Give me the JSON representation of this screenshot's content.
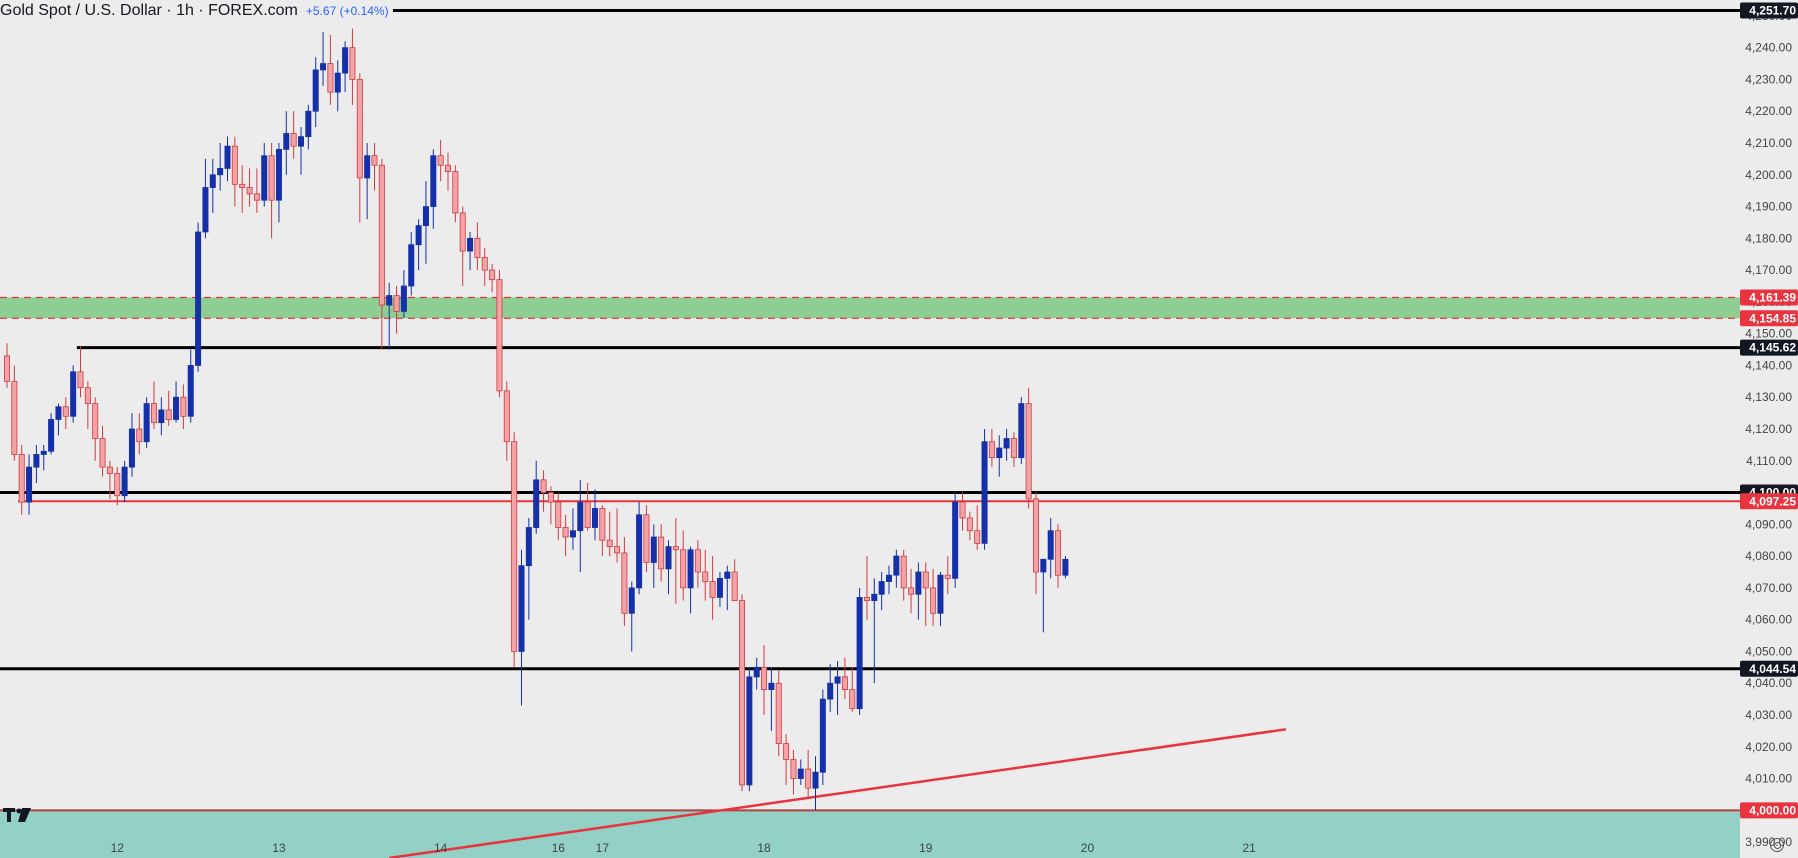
{
  "header": {
    "title": "Gold Spot / U.S. Dollar · 1h · FOREX.com",
    "change": "+5.67 (+0.14%)"
  },
  "colors": {
    "background": "#ececec",
    "bull": "#1530a8",
    "bear": "#f2a3a5",
    "bear_outline": "#d23a41",
    "resistance_line": "#000000",
    "red_line": "#e8343f",
    "green_zone": "#8fce92",
    "teal_zone": "#93d0c6"
  },
  "icons": {
    "logo": "tradingview-logo-icon",
    "settings": "settings-gear-icon"
  },
  "chart_data": {
    "type": "candlestick",
    "title": "Gold Spot / U.S. Dollar · 1h · FOREX.com",
    "xlabel": "",
    "ylabel": "",
    "ylim": [
      3985,
      4255
    ],
    "x_ticks": [
      {
        "label": "12",
        "bar": 15
      },
      {
        "label": "13",
        "bar": 37
      },
      {
        "label": "14",
        "bar": 59
      },
      {
        "label": "16",
        "bar": 75
      },
      {
        "label": "17",
        "bar": 81
      },
      {
        "label": "18",
        "bar": 103
      },
      {
        "label": "19",
        "bar": 125
      },
      {
        "label": "20",
        "bar": 147
      },
      {
        "label": "21",
        "bar": 169
      }
    ],
    "y_ticks": [
      3990,
      4000,
      4010,
      4020,
      4030,
      4040,
      4050,
      4060,
      4070,
      4080,
      4090,
      4100,
      4110,
      4120,
      4130,
      4140,
      4150,
      4160,
      4170,
      4180,
      4190,
      4200,
      4210,
      4220,
      4230,
      4240,
      4250
    ],
    "horizontal_lines": [
      {
        "value": 4251.7,
        "label": "4,251.70",
        "color": "#000000",
        "start_bar": -1
      },
      {
        "value": 4145.62,
        "label": "4,145.62",
        "color": "#000000",
        "start_bar": 9.5
      },
      {
        "value": 4100.0,
        "label": "4,100.00",
        "color": "#000000",
        "start_bar": -1
      },
      {
        "value": 4097.25,
        "label": "4,097.25",
        "color": "#e8343f",
        "start_bar": 1.5
      },
      {
        "value": 4044.54,
        "label": "4,044.54",
        "color": "#000000",
        "start_bar": -1
      }
    ],
    "zones": [
      {
        "from": 4154.85,
        "to": 4161.39,
        "color": "#8fce92",
        "label_top": "4,161.39",
        "label_bottom": "4,154.85",
        "label_color": "#e8343f"
      },
      {
        "from": 3985,
        "to": 4000.0,
        "color": "#93d0c6",
        "label_top": "4,000.00",
        "label_color": "#e8343f"
      }
    ],
    "trendline": {
      "start": {
        "bar": 52,
        "value": 3985
      },
      "end": {
        "bar": 174,
        "value": 4025.5
      },
      "color": "#e8343f"
    },
    "candles": [
      [
        4143,
        4147,
        4133,
        4135
      ],
      [
        4135,
        4140,
        4110,
        4112
      ],
      [
        4112,
        4115,
        4093,
        4097
      ],
      [
        4097,
        4112,
        4093,
        4108
      ],
      [
        4108,
        4115,
        4103,
        4112
      ],
      [
        4112,
        4115,
        4107,
        4113
      ],
      [
        4113,
        4125,
        4112,
        4123
      ],
      [
        4123,
        4128,
        4118,
        4127
      ],
      [
        4127,
        4130,
        4120,
        4124
      ],
      [
        4124,
        4140,
        4122,
        4138
      ],
      [
        4138,
        4146,
        4130,
        4133
      ],
      [
        4133,
        4135,
        4120,
        4128
      ],
      [
        4128,
        4130,
        4110,
        4117
      ],
      [
        4117,
        4121,
        4105,
        4108
      ],
      [
        4108,
        4110,
        4098,
        4106
      ],
      [
        4106,
        4108,
        4096,
        4099
      ],
      [
        4099,
        4110,
        4097,
        4108
      ],
      [
        4108,
        4125,
        4105,
        4120
      ],
      [
        4120,
        4125,
        4112,
        4116
      ],
      [
        4116,
        4130,
        4114,
        4128
      ],
      [
        4128,
        4135,
        4120,
        4122
      ],
      [
        4122,
        4130,
        4118,
        4126
      ],
      [
        4126,
        4132,
        4121,
        4123
      ],
      [
        4123,
        4135,
        4122,
        4130
      ],
      [
        4130,
        4134,
        4120,
        4124
      ],
      [
        4124,
        4145,
        4122,
        4140
      ],
      [
        4140,
        4185,
        4138,
        4182
      ],
      [
        4182,
        4205,
        4180,
        4196
      ],
      [
        4196,
        4205,
        4188,
        4200
      ],
      [
        4200,
        4210,
        4195,
        4202
      ],
      [
        4202,
        4212,
        4198,
        4209
      ],
      [
        4209,
        4212,
        4190,
        4197
      ],
      [
        4197,
        4203,
        4188,
        4196
      ],
      [
        4196,
        4202,
        4190,
        4194
      ],
      [
        4194,
        4202,
        4188,
        4192
      ],
      [
        4192,
        4210,
        4190,
        4206
      ],
      [
        4206,
        4210,
        4180,
        4192
      ],
      [
        4192,
        4210,
        4185,
        4208
      ],
      [
        4208,
        4220,
        4200,
        4213
      ],
      [
        4213,
        4220,
        4205,
        4209
      ],
      [
        4209,
        4215,
        4200,
        4212
      ],
      [
        4212,
        4222,
        4208,
        4220
      ],
      [
        4220,
        4237,
        4215,
        4233
      ],
      [
        4233,
        4245,
        4228,
        4235
      ],
      [
        4235,
        4244,
        4222,
        4226
      ],
      [
        4226,
        4236,
        4220,
        4232
      ],
      [
        4232,
        4242,
        4226,
        4240
      ],
      [
        4240,
        4246,
        4222,
        4230
      ],
      [
        4230,
        4232,
        4185,
        4199
      ],
      [
        4199,
        4210,
        4186,
        4206
      ],
      [
        4206,
        4210,
        4195,
        4203
      ],
      [
        4203,
        4205,
        4145,
        4159
      ],
      [
        4159,
        4166,
        4145,
        4162
      ],
      [
        4162,
        4165,
        4150,
        4157
      ],
      [
        4157,
        4170,
        4155,
        4165
      ],
      [
        4165,
        4182,
        4162,
        4178
      ],
      [
        4178,
        4186,
        4170,
        4184
      ],
      [
        4184,
        4198,
        4172,
        4190
      ],
      [
        4190,
        4208,
        4183,
        4206
      ],
      [
        4206,
        4211,
        4198,
        4203
      ],
      [
        4203,
        4207,
        4195,
        4201
      ],
      [
        4201,
        4203,
        4185,
        4188
      ],
      [
        4188,
        4190,
        4165,
        4176
      ],
      [
        4176,
        4182,
        4170,
        4180
      ],
      [
        4180,
        4185,
        4170,
        4174
      ],
      [
        4174,
        4177,
        4165,
        4170
      ],
      [
        4170,
        4172,
        4163,
        4167
      ],
      [
        4167,
        4170,
        4130,
        4132
      ],
      [
        4132,
        4135,
        4110,
        4116
      ],
      [
        4116,
        4119,
        4045,
        4050
      ],
      [
        4050,
        4082,
        4033,
        4077
      ],
      [
        4077,
        4092,
        4060,
        4089
      ],
      [
        4089,
        4110,
        4087,
        4104
      ],
      [
        4104,
        4107,
        4094,
        4100
      ],
      [
        4100,
        4102,
        4090,
        4097
      ],
      [
        4097,
        4100,
        4085,
        4089
      ],
      [
        4089,
        4093,
        4080,
        4086
      ],
      [
        4086,
        4095,
        4082,
        4088
      ],
      [
        4088,
        4104,
        4075,
        4097
      ],
      [
        4097,
        4103,
        4088,
        4089
      ],
      [
        4089,
        4101,
        4085,
        4095
      ],
      [
        4095,
        4096,
        4080,
        4085
      ],
      [
        4085,
        4094,
        4080,
        4083
      ],
      [
        4083,
        4095,
        4078,
        4081
      ],
      [
        4081,
        4086,
        4058,
        4062
      ],
      [
        4062,
        4072,
        4050,
        4070
      ],
      [
        4070,
        4097,
        4068,
        4093
      ],
      [
        4093,
        4096,
        4075,
        4078
      ],
      [
        4078,
        4090,
        4070,
        4086
      ],
      [
        4086,
        4090,
        4072,
        4076
      ],
      [
        4076,
        4085,
        4068,
        4083
      ],
      [
        4083,
        4092,
        4065,
        4082
      ],
      [
        4082,
        4088,
        4066,
        4070
      ],
      [
        4070,
        4083,
        4062,
        4082
      ],
      [
        4082,
        4085,
        4070,
        4075
      ],
      [
        4075,
        4082,
        4066,
        4072
      ],
      [
        4072,
        4080,
        4060,
        4067
      ],
      [
        4067,
        4075,
        4064,
        4073
      ],
      [
        4073,
        4077,
        4063,
        4075
      ],
      [
        4075,
        4079,
        4068,
        4066
      ],
      [
        4066,
        4068,
        4006,
        4008
      ],
      [
        4008,
        4045,
        4006,
        4042
      ],
      [
        4042,
        4048,
        4038,
        4045
      ],
      [
        4045,
        4052,
        4030,
        4038
      ],
      [
        4038,
        4045,
        4025,
        4040
      ],
      [
        4040,
        4044,
        4017,
        4021
      ],
      [
        4021,
        4024,
        4008,
        4016
      ],
      [
        4016,
        4019,
        4005,
        4010
      ],
      [
        4010,
        4016,
        4008,
        4013
      ],
      [
        4013,
        4019,
        4004,
        4007
      ],
      [
        4007,
        4017,
        4000,
        4012
      ],
      [
        4012,
        4038,
        4008,
        4035
      ],
      [
        4035,
        4046,
        4031,
        4040
      ],
      [
        4040,
        4047,
        4030,
        4042
      ],
      [
        4042,
        4048,
        4035,
        4038
      ],
      [
        4038,
        4045,
        4031,
        4032
      ],
      [
        4032,
        4070,
        4030,
        4067
      ],
      [
        4067,
        4080,
        4060,
        4066
      ],
      [
        4066,
        4073,
        4040,
        4068
      ],
      [
        4068,
        4075,
        4063,
        4072
      ],
      [
        4072,
        4077,
        4068,
        4074
      ],
      [
        4074,
        4082,
        4070,
        4080
      ],
      [
        4080,
        4082,
        4066,
        4070
      ],
      [
        4070,
        4076,
        4062,
        4068
      ],
      [
        4068,
        4078,
        4060,
        4075
      ],
      [
        4075,
        4078,
        4058,
        4070
      ],
      [
        4070,
        4076,
        4058,
        4062
      ],
      [
        4062,
        4075,
        4058,
        4074
      ],
      [
        4074,
        4080,
        4068,
        4073
      ],
      [
        4073,
        4100,
        4070,
        4097
      ],
      [
        4097,
        4100,
        4088,
        4092
      ],
      [
        4092,
        4094,
        4085,
        4088
      ],
      [
        4088,
        4096,
        4082,
        4084
      ],
      [
        4084,
        4120,
        4082,
        4116
      ],
      [
        4116,
        4120,
        4108,
        4111
      ],
      [
        4111,
        4118,
        4105,
        4114
      ],
      [
        4114,
        4120,
        4110,
        4117
      ],
      [
        4117,
        4119,
        4108,
        4111
      ],
      [
        4111,
        4130,
        4109,
        4128
      ],
      [
        4128,
        4133,
        4095,
        4098
      ],
      [
        4098,
        4100,
        4068,
        4075
      ],
      [
        4075,
        4079,
        4056,
        4079
      ],
      [
        4079,
        4092,
        4073,
        4088
      ],
      [
        4088,
        4090,
        4070,
        4074
      ],
      [
        4074,
        4080,
        4073,
        4079
      ]
    ]
  }
}
